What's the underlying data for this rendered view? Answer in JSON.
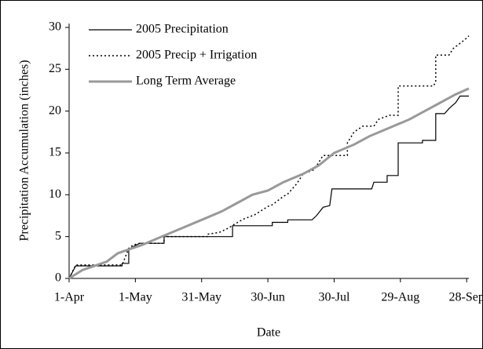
{
  "chart_data": {
    "type": "line",
    "xlabel": "Date",
    "ylabel": "Precipitation Accumulation (inches)",
    "xlim": [
      0,
      181
    ],
    "ylim": [
      0,
      30
    ],
    "xticks": [
      {
        "value": 0,
        "label": "1-Apr"
      },
      {
        "value": 30,
        "label": "1-May"
      },
      {
        "value": 60,
        "label": "31-May"
      },
      {
        "value": 90,
        "label": "30-Jun"
      },
      {
        "value": 120,
        "label": "30-Jul"
      },
      {
        "value": 150,
        "label": "29-Aug"
      },
      {
        "value": 180,
        "label": "28-Sep"
      }
    ],
    "yticks": [
      0,
      5,
      10,
      15,
      20,
      25,
      30
    ],
    "legend": "upper left",
    "series": [
      {
        "name": "2005 Precipitation",
        "color": "#000000",
        "dash": "solid",
        "width": 1.2,
        "x": [
          0,
          3,
          24,
          24,
          27,
          27,
          29,
          32,
          43,
          43,
          74,
          74,
          92,
          92,
          99,
          99,
          110,
          112,
          115,
          118,
          119,
          137,
          138,
          144,
          144,
          149,
          149,
          160,
          160,
          166,
          166,
          170,
          172,
          175,
          177,
          181
        ],
        "values": [
          0,
          1.5,
          1.5,
          1.8,
          1.8,
          3.5,
          3.8,
          4.2,
          4.2,
          5.0,
          5.0,
          6.3,
          6.3,
          6.7,
          6.7,
          7.0,
          7.0,
          7.5,
          8.5,
          8.7,
          10.7,
          10.7,
          11.5,
          11.5,
          12.3,
          12.3,
          16.2,
          16.2,
          16.5,
          16.5,
          19.7,
          19.7,
          20.3,
          21,
          21.8,
          21.8
        ]
      },
      {
        "name": "2005 Precip + Irrigation",
        "color": "#000000",
        "dash": "dotted",
        "width": 1.5,
        "x": [
          0,
          3,
          24,
          27,
          29,
          32,
          43,
          43,
          63,
          63,
          68,
          72,
          75,
          79,
          84,
          90,
          92,
          97,
          99,
          103,
          106,
          111,
          115,
          126,
          126,
          129,
          133,
          138,
          140,
          145,
          149,
          149,
          165,
          166,
          166,
          172,
          174,
          179,
          181
        ],
        "values": [
          0,
          1.6,
          1.6,
          3.6,
          4.0,
          4.2,
          4.2,
          5.0,
          5.0,
          5.3,
          5.5,
          6.0,
          6.5,
          7.1,
          7.6,
          8.6,
          8.8,
          9.8,
          10.1,
          11.3,
          12.5,
          13.0,
          14.7,
          14.7,
          16.2,
          17.5,
          18.2,
          18.2,
          19.0,
          19.5,
          19.5,
          23.0,
          23.0,
          23.5,
          26.7,
          26.7,
          27.5,
          28.5,
          29
        ]
      },
      {
        "name": "Long Term Average",
        "color": "#999999",
        "dash": "solid",
        "width": 3,
        "x": [
          0,
          6,
          17,
          22,
          33,
          42,
          51,
          60,
          69,
          76,
          83,
          90,
          97,
          106,
          113,
          120,
          129,
          136,
          145,
          154,
          161,
          168,
          175,
          181
        ],
        "values": [
          0,
          1,
          2,
          3,
          4,
          5,
          6,
          7,
          8,
          9,
          10,
          10.5,
          11.5,
          12.5,
          13.5,
          15,
          16,
          17,
          18,
          19,
          20,
          21,
          22,
          22.7
        ]
      }
    ]
  }
}
